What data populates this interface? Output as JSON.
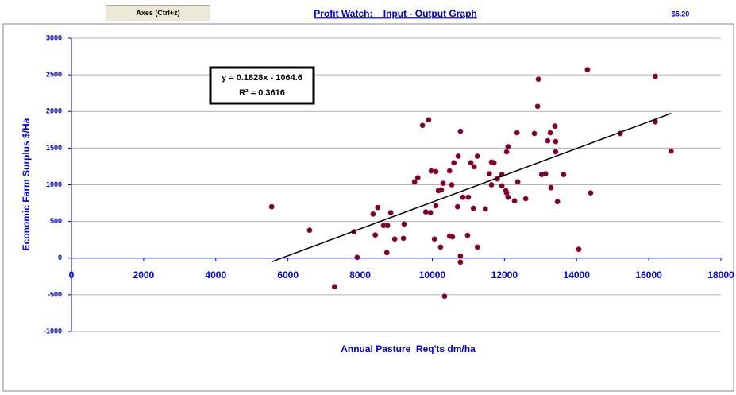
{
  "button": "Axes (Ctrl+z)",
  "price": "$5.20",
  "chart_data": {
    "type": "scatter",
    "title": "Profit Watch:    Input - Output Graph",
    "x_label": "Annual Pasture  Req'ts dm/ha",
    "y_label": "Economic Farm Surplus $/Ha",
    "xlim": [
      0,
      18000
    ],
    "xticks": [
      0,
      2000,
      4000,
      6000,
      8000,
      10000,
      12000,
      14000,
      16000,
      18000
    ],
    "ylim": [
      -1000,
      3000
    ],
    "yticks": [
      -1000,
      -500,
      0,
      500,
      1000,
      1500,
      2000,
      2500,
      3000
    ],
    "grid": true,
    "series": [
      {
        "color": "#5a0a4a",
        "edge": "#cc0000",
        "x": [
          5550,
          6600,
          7290,
          7920,
          7830,
          8360,
          8490,
          8420,
          8650,
          8760,
          8740,
          8850,
          8960,
          9200,
          9220,
          9510,
          9600,
          9730,
          9900,
          9820,
          9950,
          9970,
          10100,
          10060,
          10100,
          10170,
          10250,
          10300,
          10230,
          10340,
          10480,
          10540,
          10480,
          10560,
          10600,
          10720,
          10700,
          10780,
          10780,
          10780,
          10850,
          10980,
          11000,
          11070,
          11160,
          11140,
          11250,
          11250,
          11470,
          11580,
          11640,
          11710,
          11640,
          11800,
          11930,
          11930,
          12040,
          12060,
          12060,
          12100,
          12100,
          12280,
          12350,
          12370,
          12590,
          12830,
          12920,
          12940,
          13030,
          13140,
          13200,
          13270,
          13290,
          13400,
          13420,
          13420,
          13470,
          13640,
          14060,
          14300,
          14390,
          15210,
          16180,
          16180,
          16620
        ],
        "values": [
          700,
          380,
          -390,
          10,
          360,
          600,
          690,
          315,
          445,
          445,
          75,
          620,
          260,
          270,
          465,
          1040,
          1095,
          1810,
          1885,
          630,
          620,
          1190,
          1180,
          260,
          715,
          920,
          930,
          1020,
          150,
          -520,
          1190,
          1000,
          300,
          290,
          1300,
          1390,
          700,
          30,
          -55,
          1730,
          830,
          310,
          830,
          1300,
          1245,
          680,
          1390,
          150,
          670,
          1150,
          1310,
          1300,
          1000,
          1080,
          1140,
          985,
          920,
          890,
          1450,
          1520,
          830,
          780,
          1710,
          1040,
          810,
          1700,
          2070,
          2440,
          1140,
          1150,
          1600,
          1710,
          960,
          1800,
          1590,
          1450,
          770,
          1140,
          120,
          2570,
          890,
          1700,
          2480,
          1860,
          1460
        ]
      }
    ],
    "trendline": {
      "label": "y = 0.1828x - 1064.6",
      "r2_label": "R² = 0.3616",
      "slope": 0.1828,
      "intercept": -1064.6,
      "x": [
        5546,
        16620
      ],
      "color": "#000000"
    }
  }
}
